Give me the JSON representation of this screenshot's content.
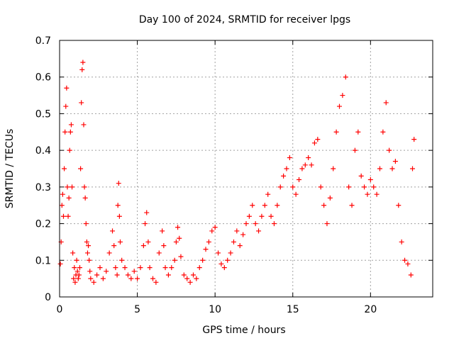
{
  "chart_data": {
    "type": "scatter",
    "title": "Day 100 of 2024, SRMTID for receiver lpgs",
    "xlabel": "GPS time / hours",
    "ylabel": "SRMTID / TECUs",
    "xlim": [
      0,
      24
    ],
    "ylim": [
      0,
      0.7
    ],
    "xticks": [
      0,
      5,
      10,
      15,
      20
    ],
    "yticks": [
      0,
      0.1,
      0.2,
      0.3,
      0.4,
      0.5,
      0.6,
      0.7
    ],
    "grid": true,
    "marker": "+",
    "color": "#ff0000",
    "series": [
      {
        "name": "SRMTID",
        "points": [
          [
            0.05,
            0.09
          ],
          [
            0.1,
            0.15
          ],
          [
            0.15,
            0.25
          ],
          [
            0.2,
            0.28
          ],
          [
            0.25,
            0.22
          ],
          [
            0.3,
            0.35
          ],
          [
            0.35,
            0.45
          ],
          [
            0.4,
            0.52
          ],
          [
            0.45,
            0.57
          ],
          [
            0.5,
            0.3
          ],
          [
            0.55,
            0.22
          ],
          [
            0.6,
            0.27
          ],
          [
            0.65,
            0.4
          ],
          [
            0.7,
            0.45
          ],
          [
            0.75,
            0.47
          ],
          [
            0.8,
            0.3
          ],
          [
            0.85,
            0.12
          ],
          [
            0.9,
            0.05
          ],
          [
            0.95,
            0.08
          ],
          [
            1.0,
            0.04
          ],
          [
            1.05,
            0.06
          ],
          [
            1.1,
            0.1
          ],
          [
            1.15,
            0.07
          ],
          [
            1.2,
            0.05
          ],
          [
            1.25,
            0.06
          ],
          [
            1.3,
            0.08
          ],
          [
            1.35,
            0.35
          ],
          [
            1.4,
            0.53
          ],
          [
            1.45,
            0.62
          ],
          [
            1.5,
            0.64
          ],
          [
            1.55,
            0.47
          ],
          [
            1.6,
            0.3
          ],
          [
            1.65,
            0.27
          ],
          [
            1.7,
            0.2
          ],
          [
            1.75,
            0.15
          ],
          [
            1.8,
            0.12
          ],
          [
            1.85,
            0.14
          ],
          [
            1.9,
            0.1
          ],
          [
            1.95,
            0.07
          ],
          [
            2.0,
            0.05
          ],
          [
            2.2,
            0.04
          ],
          [
            2.4,
            0.06
          ],
          [
            2.6,
            0.08
          ],
          [
            2.8,
            0.05
          ],
          [
            3.0,
            0.07
          ],
          [
            3.2,
            0.12
          ],
          [
            3.4,
            0.18
          ],
          [
            3.5,
            0.14
          ],
          [
            3.6,
            0.08
          ],
          [
            3.7,
            0.06
          ],
          [
            3.75,
            0.25
          ],
          [
            3.8,
            0.31
          ],
          [
            3.85,
            0.22
          ],
          [
            3.9,
            0.15
          ],
          [
            4.0,
            0.1
          ],
          [
            4.2,
            0.08
          ],
          [
            4.4,
            0.06
          ],
          [
            4.6,
            0.05
          ],
          [
            4.8,
            0.07
          ],
          [
            5.0,
            0.05
          ],
          [
            5.2,
            0.08
          ],
          [
            5.4,
            0.14
          ],
          [
            5.5,
            0.2
          ],
          [
            5.6,
            0.23
          ],
          [
            5.7,
            0.15
          ],
          [
            5.8,
            0.08
          ],
          [
            6.0,
            0.05
          ],
          [
            6.2,
            0.04
          ],
          [
            6.4,
            0.12
          ],
          [
            6.6,
            0.18
          ],
          [
            6.7,
            0.14
          ],
          [
            6.8,
            0.08
          ],
          [
            7.0,
            0.06
          ],
          [
            7.2,
            0.08
          ],
          [
            7.4,
            0.1
          ],
          [
            7.5,
            0.15
          ],
          [
            7.6,
            0.19
          ],
          [
            7.7,
            0.16
          ],
          [
            7.8,
            0.11
          ],
          [
            8.0,
            0.06
          ],
          [
            8.2,
            0.05
          ],
          [
            8.4,
            0.04
          ],
          [
            8.6,
            0.06
          ],
          [
            8.8,
            0.05
          ],
          [
            9.0,
            0.08
          ],
          [
            9.2,
            0.1
          ],
          [
            9.4,
            0.13
          ],
          [
            9.6,
            0.15
          ],
          [
            9.8,
            0.18
          ],
          [
            10.0,
            0.19
          ],
          [
            10.2,
            0.12
          ],
          [
            10.4,
            0.09
          ],
          [
            10.6,
            0.08
          ],
          [
            10.8,
            0.1
          ],
          [
            11.0,
            0.12
          ],
          [
            11.2,
            0.15
          ],
          [
            11.4,
            0.18
          ],
          [
            11.6,
            0.14
          ],
          [
            11.8,
            0.17
          ],
          [
            12.0,
            0.2
          ],
          [
            12.2,
            0.22
          ],
          [
            12.4,
            0.25
          ],
          [
            12.6,
            0.2
          ],
          [
            12.8,
            0.18
          ],
          [
            13.0,
            0.22
          ],
          [
            13.2,
            0.25
          ],
          [
            13.4,
            0.28
          ],
          [
            13.6,
            0.22
          ],
          [
            13.8,
            0.2
          ],
          [
            14.0,
            0.25
          ],
          [
            14.2,
            0.3
          ],
          [
            14.4,
            0.33
          ],
          [
            14.6,
            0.35
          ],
          [
            14.8,
            0.38
          ],
          [
            15.0,
            0.3
          ],
          [
            15.2,
            0.28
          ],
          [
            15.4,
            0.32
          ],
          [
            15.6,
            0.35
          ],
          [
            15.8,
            0.36
          ],
          [
            16.0,
            0.38
          ],
          [
            16.2,
            0.36
          ],
          [
            16.4,
            0.42
          ],
          [
            16.6,
            0.43
          ],
          [
            16.8,
            0.3
          ],
          [
            17.0,
            0.25
          ],
          [
            17.2,
            0.2
          ],
          [
            17.4,
            0.27
          ],
          [
            17.6,
            0.35
          ],
          [
            17.8,
            0.45
          ],
          [
            18.0,
            0.52
          ],
          [
            18.2,
            0.55
          ],
          [
            18.4,
            0.6
          ],
          [
            18.6,
            0.3
          ],
          [
            18.8,
            0.25
          ],
          [
            19.0,
            0.4
          ],
          [
            19.2,
            0.45
          ],
          [
            19.4,
            0.33
          ],
          [
            19.6,
            0.3
          ],
          [
            19.8,
            0.28
          ],
          [
            20.0,
            0.32
          ],
          [
            20.2,
            0.3
          ],
          [
            20.4,
            0.28
          ],
          [
            20.6,
            0.35
          ],
          [
            20.8,
            0.45
          ],
          [
            21.0,
            0.53
          ],
          [
            21.2,
            0.4
          ],
          [
            21.4,
            0.35
          ],
          [
            21.6,
            0.37
          ],
          [
            21.8,
            0.25
          ],
          [
            22.0,
            0.15
          ],
          [
            22.2,
            0.1
          ],
          [
            22.4,
            0.09
          ],
          [
            22.6,
            0.06
          ],
          [
            22.7,
            0.35
          ],
          [
            22.8,
            0.43
          ]
        ]
      }
    ]
  }
}
